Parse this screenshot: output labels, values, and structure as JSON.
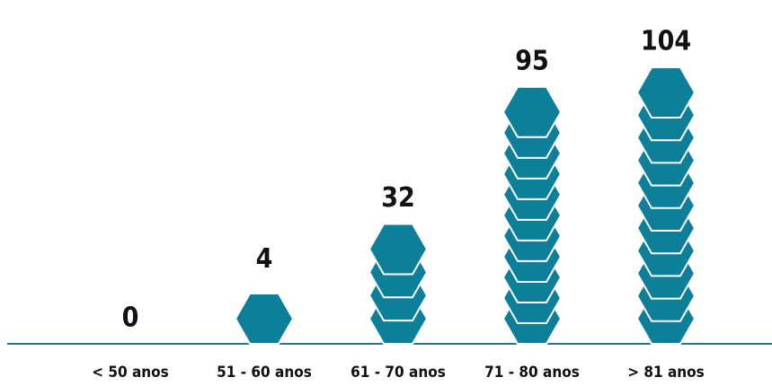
{
  "chart_data": {
    "type": "pictogram",
    "categories": [
      "< 50 anos",
      "51 - 60 anos",
      "61 - 70 anos",
      "71 - 80 anos",
      "> 81 anos"
    ],
    "values": [
      0,
      4,
      32,
      95,
      104
    ],
    "color": "#0e7f99"
  }
}
